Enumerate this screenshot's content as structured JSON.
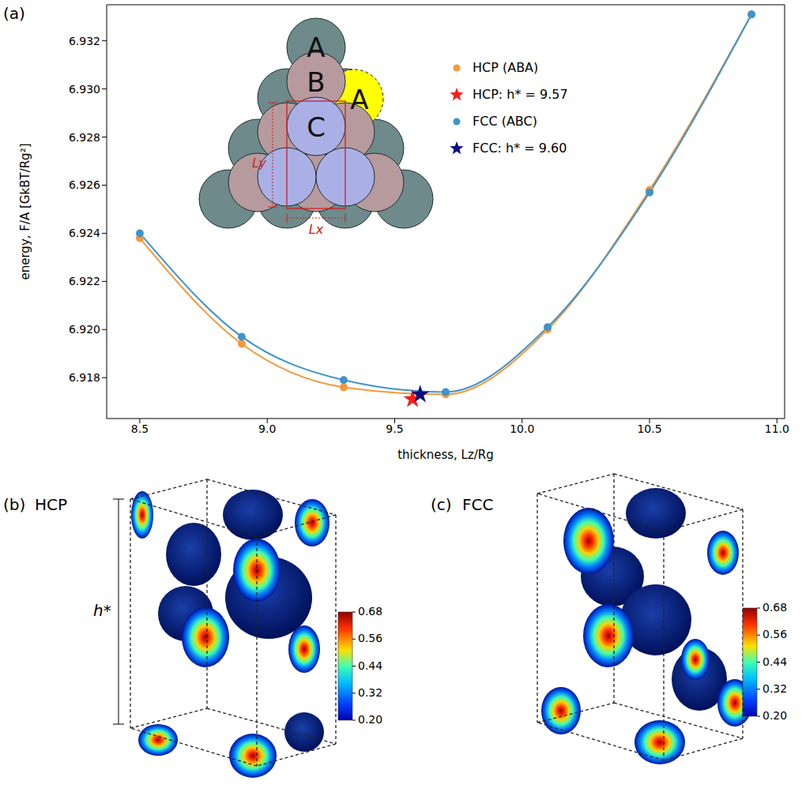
{
  "panel_label": "(a)",
  "chart_data": {
    "type": "line",
    "x_label": "thickness, Lz/Rg",
    "y_label": "energy, F/A [GkBT/Rg²]",
    "xlim": [
      8.37,
      11.03
    ],
    "xticks": [
      8.5,
      {
        "value": 9,
        "label": "9.0"
      },
      9.5,
      {
        "value": 10,
        "label": "10.0"
      },
      10.5,
      {
        "value": 11,
        "label": "11.0"
      }
    ],
    "ylim": [
      6.9163,
      6.9335
    ],
    "yticks": [
      6.918,
      {
        "value": 6.92,
        "label": "6.920"
      },
      6.922,
      6.924,
      6.926,
      6.928,
      {
        "value": 6.93,
        "label": "6.930"
      },
      6.932
    ],
    "grid": false,
    "legend": "upper right",
    "series": [
      {
        "name": "HCP (ABA)",
        "type": "line",
        "marker": "circle",
        "line_style": "solid",
        "color": "#f5983a",
        "x": [
          8.5,
          8.9,
          9.3,
          9.7,
          10.1,
          10.5,
          10.9
        ],
        "values": [
          6.9238,
          6.9194,
          6.9176,
          6.9173,
          6.92,
          6.9258,
          6.9331
        ]
      },
      {
        "name": "HCP: h* = 9.57",
        "type": "scatter",
        "marker": "star",
        "color": "#ff1a1a",
        "x": [
          9.57
        ],
        "values": [
          6.9171
        ]
      },
      {
        "name": "FCC (ABC)",
        "type": "line",
        "marker": "circle",
        "line_style": "solid",
        "color": "#3f94cc",
        "x": [
          8.5,
          8.9,
          9.3,
          9.7,
          10.1,
          10.5,
          10.9
        ],
        "values": [
          6.924,
          6.9197,
          6.9179,
          6.9174,
          6.9201,
          6.9257,
          6.9331
        ]
      },
      {
        "name": "FCC: h* = 9.60",
        "type": "scatter",
        "marker": "star",
        "color": "#0d0d80",
        "x": [
          9.6
        ],
        "values": [
          6.9173
        ]
      }
    ]
  },
  "inset": {
    "labels": [
      "A",
      "B",
      "C",
      "A"
    ],
    "dimensions": [
      "Ly",
      "Lx"
    ]
  },
  "renders": [
    {
      "label": "(b)",
      "title": "HCP",
      "height_label": "h*"
    },
    {
      "label": "(c)",
      "title": "FCC"
    }
  ],
  "colorbar": {
    "range": [
      0.2,
      0.68
    ],
    "ticks": [
      {
        "value": 0.2,
        "label": "0.20"
      },
      0.32,
      0.44,
      0.56,
      0.68
    ]
  }
}
